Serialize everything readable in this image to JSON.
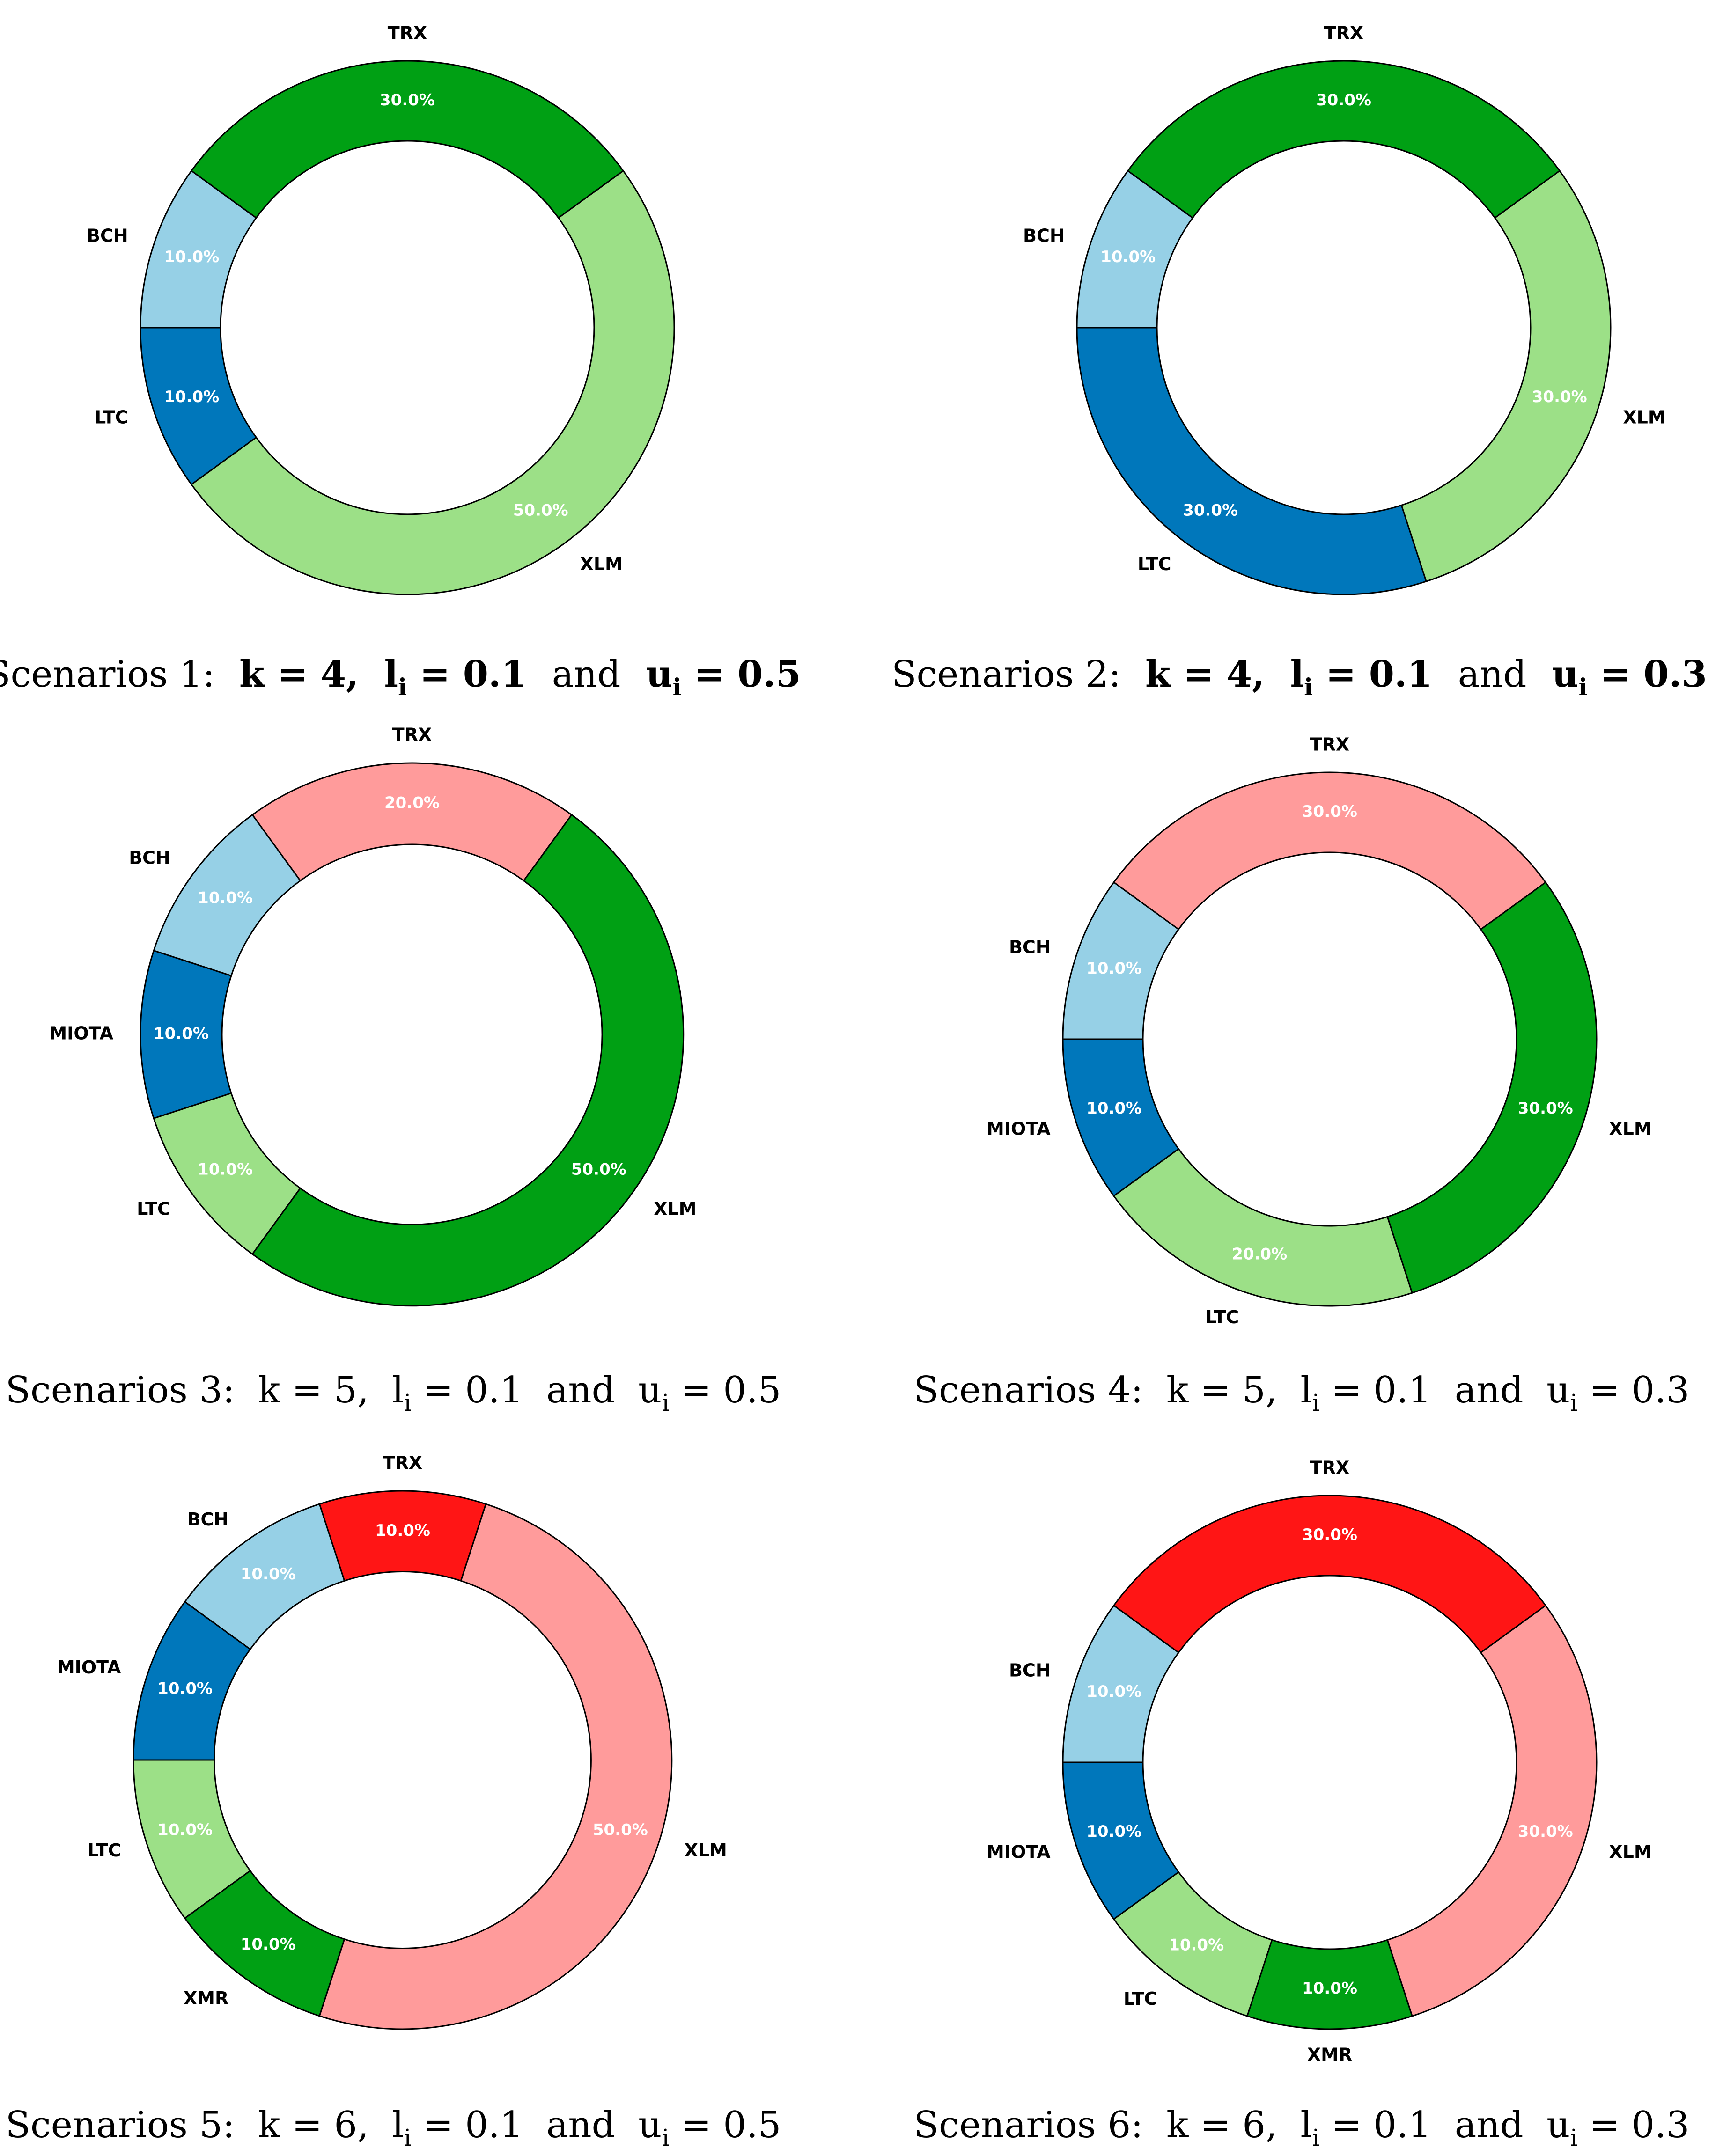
{
  "chart_data": [
    {
      "type": "pie",
      "variant": "donut",
      "title": "",
      "caption": {
        "prefix": "Scenarios 1:",
        "k": "4",
        "l": "0.1",
        "u": "0.5"
      },
      "slices": [
        {
          "label": "TRX",
          "value": 30.0,
          "pct_text": "30.0%",
          "color": "#00A014"
        },
        {
          "label": "BCH",
          "value": 10.0,
          "pct_text": "10.0%",
          "color": "#96D0E6"
        },
        {
          "label": "LTC",
          "value": 10.0,
          "pct_text": "10.0%",
          "color": "#0077BB"
        },
        {
          "label": "XLM",
          "value": 50.0,
          "pct_text": "50.0%",
          "color": "#9CE087"
        }
      ]
    },
    {
      "type": "pie",
      "variant": "donut",
      "title": "",
      "caption": {
        "prefix": "Scenarios 2:",
        "k": "4",
        "l": "0.1",
        "u": "0.3"
      },
      "slices": [
        {
          "label": "TRX",
          "value": 30.0,
          "pct_text": "30.0%",
          "color": "#00A014"
        },
        {
          "label": "BCH",
          "value": 10.0,
          "pct_text": "10.0%",
          "color": "#96D0E6"
        },
        {
          "label": "LTC",
          "value": 30.0,
          "pct_text": "30.0%",
          "color": "#0077BB"
        },
        {
          "label": "XLM",
          "value": 30.0,
          "pct_text": "30.0%",
          "color": "#9CE087"
        }
      ]
    },
    {
      "type": "pie",
      "variant": "donut",
      "title": "",
      "caption": {
        "prefix": "Scenarios 3:",
        "k": "5",
        "l": "0.1",
        "u": "0.5"
      },
      "slices": [
        {
          "label": "TRX",
          "value": 20.0,
          "pct_text": "20.0%",
          "color": "#FF9B9B"
        },
        {
          "label": "BCH",
          "value": 10.0,
          "pct_text": "10.0%",
          "color": "#96D0E6"
        },
        {
          "label": "MIOTA",
          "value": 10.0,
          "pct_text": "10.0%",
          "color": "#0077BB"
        },
        {
          "label": "LTC",
          "value": 10.0,
          "pct_text": "10.0%",
          "color": "#9CE087"
        },
        {
          "label": "XLM",
          "value": 50.0,
          "pct_text": "50.0%",
          "color": "#00A014"
        }
      ]
    },
    {
      "type": "pie",
      "variant": "donut",
      "title": "",
      "caption": {
        "prefix": "Scenarios 4:",
        "k": "5",
        "l": "0.1",
        "u": "0.3"
      },
      "slices": [
        {
          "label": "TRX",
          "value": 30.0,
          "pct_text": "30.0%",
          "color": "#FF9B9B"
        },
        {
          "label": "BCH",
          "value": 10.0,
          "pct_text": "10.0%",
          "color": "#96D0E6"
        },
        {
          "label": "MIOTA",
          "value": 10.0,
          "pct_text": "10.0%",
          "color": "#0077BB"
        },
        {
          "label": "LTC",
          "value": 20.0,
          "pct_text": "20.0%",
          "color": "#9CE087"
        },
        {
          "label": "XLM",
          "value": 30.0,
          "pct_text": "30.0%",
          "color": "#00A014"
        }
      ]
    },
    {
      "type": "pie",
      "variant": "donut",
      "title": "",
      "caption": {
        "prefix": "Scenarios 5:",
        "k": "6",
        "l": "0.1",
        "u": "0.5"
      },
      "slices": [
        {
          "label": "TRX",
          "value": 10.0,
          "pct_text": "10.0%",
          "color": "#FF1515"
        },
        {
          "label": "BCH",
          "value": 10.0,
          "pct_text": "10.0%",
          "color": "#96D0E6"
        },
        {
          "label": "MIOTA",
          "value": 10.0,
          "pct_text": "10.0%",
          "color": "#0077BB"
        },
        {
          "label": "LTC",
          "value": 10.0,
          "pct_text": "10.0%",
          "color": "#9CE087"
        },
        {
          "label": "XMR",
          "value": 10.0,
          "pct_text": "10.0%",
          "color": "#00A014"
        },
        {
          "label": "XLM",
          "value": 50.0,
          "pct_text": "50.0%",
          "color": "#FF9B9B"
        }
      ]
    },
    {
      "type": "pie",
      "variant": "donut",
      "title": "",
      "caption": {
        "prefix": "Scenarios 6:",
        "k": "6",
        "l": "0.1",
        "u": "0.3"
      },
      "slices": [
        {
          "label": "TRX",
          "value": 30.0,
          "pct_text": "30.0%",
          "color": "#FF1515"
        },
        {
          "label": "BCH",
          "value": 10.0,
          "pct_text": "10.0%",
          "color": "#96D0E6"
        },
        {
          "label": "MIOTA",
          "value": 10.0,
          "pct_text": "10.0%",
          "color": "#0077BB"
        },
        {
          "label": "LTC",
          "value": 10.0,
          "pct_text": "10.0%",
          "color": "#9CE087"
        },
        {
          "label": "XMR",
          "value": 10.0,
          "pct_text": "10.0%",
          "color": "#00A014"
        },
        {
          "label": "XLM",
          "value": 30.0,
          "pct_text": "30.0%",
          "color": "#FF9B9B"
        }
      ]
    }
  ]
}
